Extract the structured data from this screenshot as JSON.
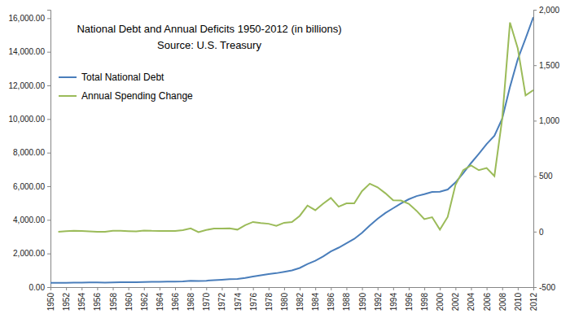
{
  "chart_data": {
    "type": "line",
    "title": "National Debt and Annual Deficits  1950-2012 (in billions)",
    "subtitle": "Source:  U.S. Treasury",
    "x": [
      1950,
      1951,
      1952,
      1953,
      1954,
      1955,
      1956,
      1957,
      1958,
      1959,
      1960,
      1961,
      1962,
      1963,
      1964,
      1965,
      1966,
      1967,
      1968,
      1969,
      1970,
      1971,
      1972,
      1973,
      1974,
      1975,
      1976,
      1977,
      1978,
      1979,
      1980,
      1981,
      1982,
      1983,
      1984,
      1985,
      1986,
      1987,
      1988,
      1989,
      1990,
      1991,
      1992,
      1993,
      1994,
      1995,
      1996,
      1997,
      1998,
      1999,
      2000,
      2001,
      2002,
      2003,
      2004,
      2005,
      2006,
      2007,
      2008,
      2009,
      2010,
      2011,
      2012
    ],
    "xlim": [
      1950,
      2012
    ],
    "xticks": [
      1950,
      1952,
      1954,
      1956,
      1958,
      1960,
      1962,
      1964,
      1966,
      1968,
      1970,
      1972,
      1974,
      1976,
      1978,
      1980,
      1982,
      1984,
      1986,
      1988,
      1990,
      1992,
      1994,
      1996,
      1998,
      2000,
      2002,
      2004,
      2006,
      2008,
      2010,
      2012
    ],
    "ylim": [
      0,
      16500
    ],
    "yticks": [
      {
        "value": 0,
        "label": "0.00"
      },
      {
        "value": 2000,
        "label": "2,000.00"
      },
      {
        "value": 4000,
        "label": "4,000.00"
      },
      {
        "value": 6000,
        "label": "6,000.00"
      },
      {
        "value": 8000,
        "label": "8,000.00"
      },
      {
        "value": 10000,
        "label": "10,000.00"
      },
      {
        "value": 12000,
        "label": "12,000.00"
      },
      {
        "value": 14000,
        "label": "14,000.00"
      },
      {
        "value": 16000,
        "label": "16,000.00"
      }
    ],
    "y2lim": [
      -500,
      2000
    ],
    "y2ticks": [
      -500,
      0,
      500,
      {
        "value": 1000,
        "label": "1,000"
      },
      {
        "value": 1500,
        "label": "1,500"
      },
      {
        "value": 2000,
        "label": "2,000"
      }
    ],
    "grid": false,
    "legend": "top-left",
    "series": [
      {
        "name": "Total National Debt",
        "color": "#4a7ebb",
        "values": [
          257,
          255,
          259,
          266,
          271,
          274,
          273,
          272,
          280,
          287,
          291,
          293,
          303,
          310,
          316,
          322,
          328,
          341,
          370,
          366,
          381,
          408,
          436,
          466,
          484,
          542,
          629,
          706,
          777,
          829,
          909,
          995,
          1137,
          1372,
          1565,
          1817,
          2121,
          2346,
          2601,
          2868,
          3233,
          3665,
          4065,
          4411,
          4693,
          4974,
          5225,
          5413,
          5526,
          5656,
          5674,
          5807,
          6228,
          6783,
          7379,
          7933,
          8507,
          9008,
          10025,
          11910,
          13562,
          14790,
          16066
        ]
      },
      {
        "name": "Annual Spending Change",
        "color": "#9bbb59",
        "axis": "y2",
        "values": [
          null,
          -2,
          4,
          7,
          5,
          3,
          -1,
          -1,
          8,
          7,
          4,
          2,
          10,
          7,
          6,
          6,
          6,
          13,
          29,
          -4,
          15,
          27,
          28,
          30,
          18,
          58,
          87,
          77,
          71,
          52,
          80,
          86,
          142,
          235,
          193,
          252,
          304,
          225,
          255,
          255,
          365,
          432,
          400,
          346,
          282,
          281,
          251,
          188,
          113,
          130,
          18,
          133,
          421,
          555,
          596,
          554,
          574,
          501,
          1017,
          1885,
          1652,
          1228,
          1276
        ]
      }
    ]
  }
}
